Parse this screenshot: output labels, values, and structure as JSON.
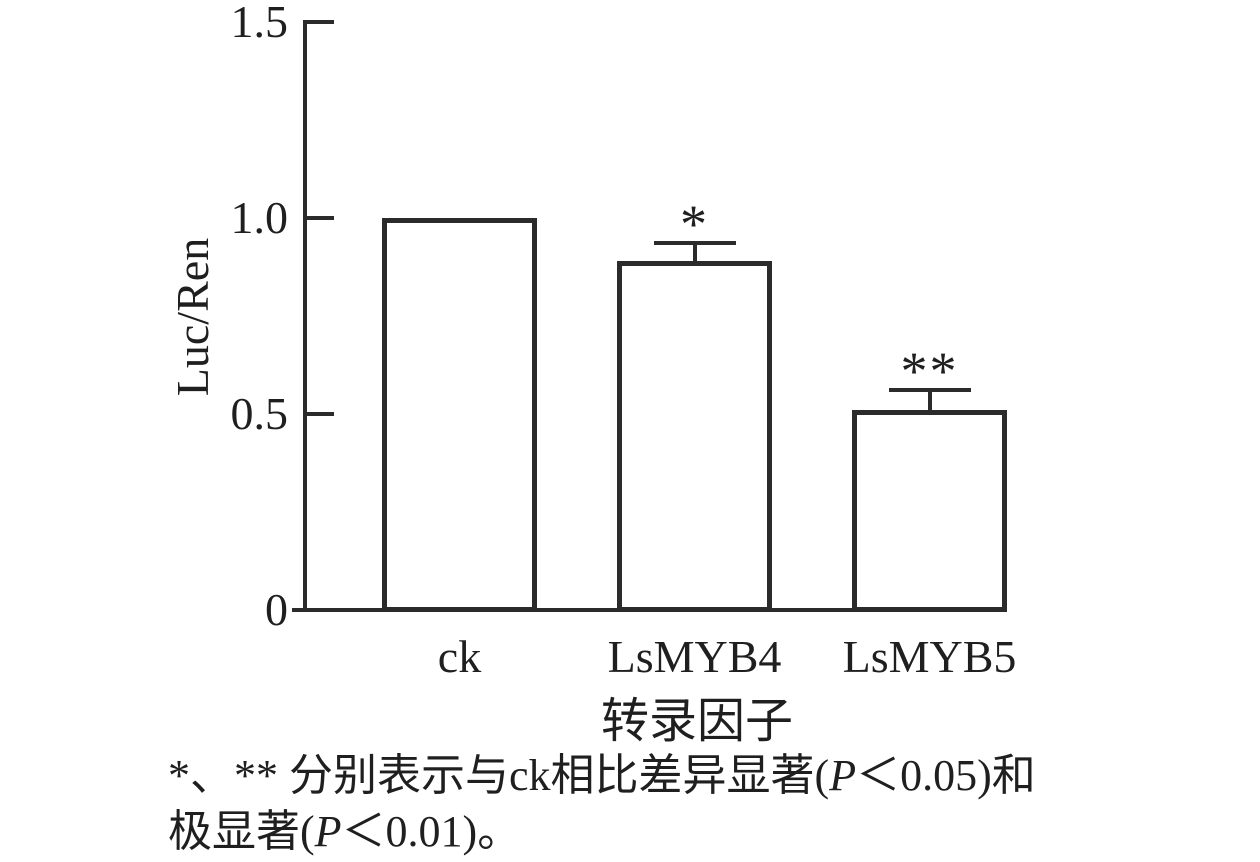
{
  "figure": {
    "background": "#ffffff",
    "line_color": "#2b2b2b",
    "text_color": "#1f1f1f"
  },
  "chart_data": {
    "type": "bar",
    "categories": [
      "ck",
      "LsMYB4",
      "LsMYB5"
    ],
    "values": [
      1.0,
      0.89,
      0.51
    ],
    "errors": [
      null,
      0.045,
      0.05
    ],
    "significance": [
      "",
      "*",
      "**"
    ],
    "title": "",
    "xlabel": "转录因子",
    "ylabel": "Luc/Ren",
    "ylim": [
      0,
      1.5
    ],
    "yticks": [
      0,
      0.5,
      1.0,
      1.5
    ],
    "ytick_labels": [
      "0",
      "0.5",
      "1.0",
      "1.5"
    ],
    "bar_fill": "#ffffff",
    "bar_border": "#2b2b2b",
    "grid": false,
    "legend": null
  },
  "caption": {
    "line1": [
      {
        "t": "*、** 分别表示与ck相比差异显著("
      },
      {
        "t": "P",
        "italic": true
      },
      {
        "t": "＜0.05)和"
      }
    ],
    "line2": [
      {
        "t": "极显著("
      },
      {
        "t": "P",
        "italic": true
      },
      {
        "t": "＜0.01)。"
      }
    ]
  }
}
